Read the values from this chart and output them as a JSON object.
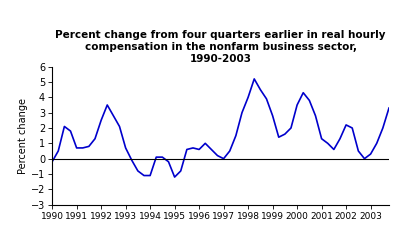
{
  "title": "Percent change from four quarters earlier in real hourly\ncompensation in the nonfarm business sector,\n1990-2003",
  "ylabel": "Percent change",
  "ylim": [
    -3,
    6
  ],
  "yticks": [
    -3,
    -2,
    -1,
    0,
    1,
    2,
    3,
    4,
    5,
    6
  ],
  "line_color": "#0000cc",
  "line_width": 1.2,
  "background_color": "#ffffff",
  "title_fontsize": 7.5,
  "ylabel_fontsize": 7,
  "xtick_fontsize": 6.5,
  "ytick_fontsize": 7,
  "years": [
    1990,
    1991,
    1992,
    1993,
    1994,
    1995,
    1996,
    1997,
    1998,
    1999,
    2000,
    2001,
    2002,
    2003
  ],
  "data": [
    -0.2,
    0.5,
    2.1,
    1.8,
    0.7,
    0.7,
    0.8,
    1.3,
    2.5,
    3.5,
    2.8,
    2.1,
    0.7,
    -0.1,
    -0.8,
    -1.1,
    -1.1,
    0.1,
    0.1,
    -0.2,
    -1.2,
    -0.8,
    0.6,
    0.7,
    0.6,
    1.0,
    0.6,
    0.2,
    0.0,
    0.5,
    1.5,
    3.0,
    4.0,
    5.2,
    4.5,
    3.9,
    2.8,
    1.4,
    1.6,
    2.0,
    3.5,
    4.3,
    3.8,
    2.8,
    1.3,
    1.0,
    0.6,
    1.3,
    2.2,
    2.0,
    0.5,
    0.0,
    0.3,
    1.0,
    2.0,
    3.3
  ]
}
